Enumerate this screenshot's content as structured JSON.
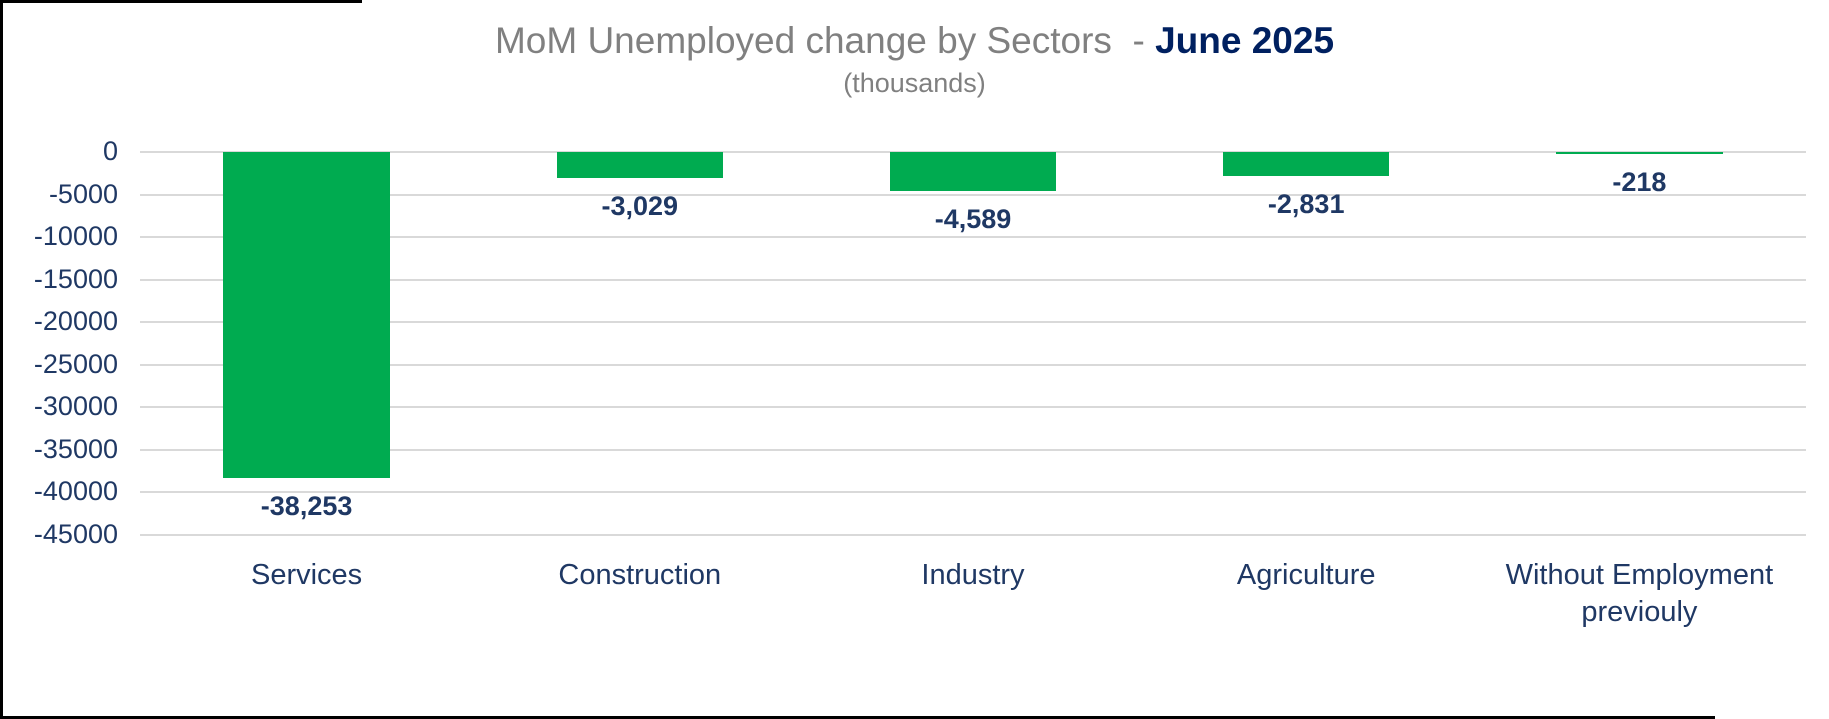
{
  "title": {
    "main": "MoM Unemployed change by Sectors",
    "separator": "  - ",
    "accent": "June 2025",
    "subtitle": "(thousands)"
  },
  "colors": {
    "bar_green": "#00AB50",
    "title_gray": "#808080",
    "label_navy": "#1F3864",
    "accent_navy": "#002060",
    "gridline_gray": "#D9D9D9",
    "frame_black": "#000000"
  },
  "chart_data": {
    "type": "bar",
    "title": "MoM Unemployed change by Sectors - June 2025",
    "subtitle": "(thousands)",
    "categories": [
      "Services",
      "Construction",
      "Industry",
      "Agriculture",
      "Without Employment previouly"
    ],
    "values": [
      -38253,
      -3029,
      -4589,
      -2831,
      -218
    ],
    "value_labels": [
      "-38,253",
      "-3,029",
      "-4,589",
      "-2,831",
      "-218"
    ],
    "xlabel": "",
    "ylabel": "",
    "ylim": [
      -45000,
      0
    ],
    "ytick_step": 5000,
    "ytick_labels": [
      "0",
      "-5000",
      "-10000",
      "-15000",
      "-20000",
      "-25000",
      "-30000",
      "-35000",
      "-40000",
      "-45000"
    ],
    "grid": true,
    "legend": false,
    "bar_color": "#00AB50",
    "data_label_position": "outside-end-below"
  }
}
